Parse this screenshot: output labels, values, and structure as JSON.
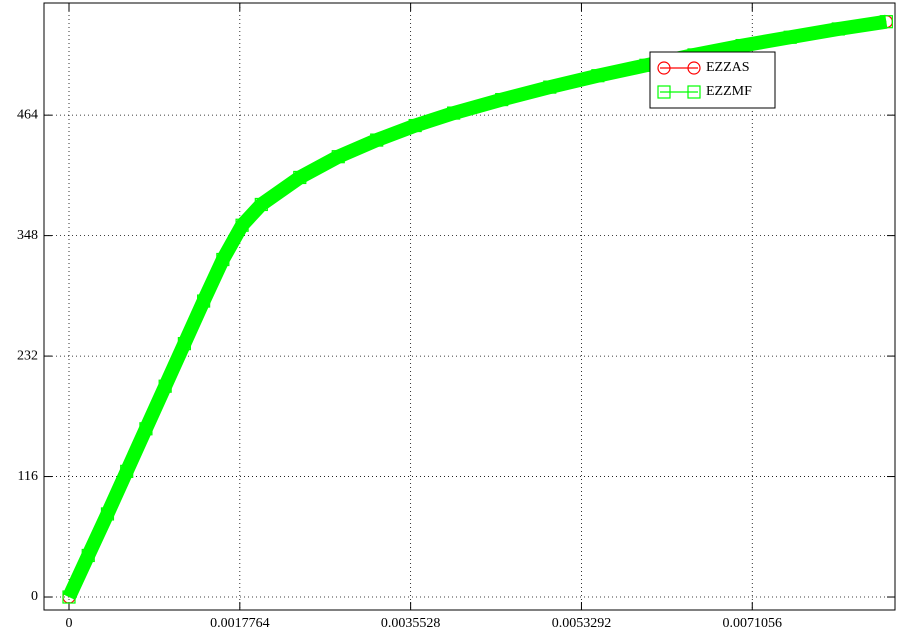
{
  "chart_data": {
    "type": "line",
    "x": [
      0,
      0.0002,
      0.0004,
      0.0006,
      0.0008,
      0.001,
      0.0012,
      0.0014,
      0.0016,
      0.0018,
      0.002,
      0.0024,
      0.0028,
      0.0032,
      0.0036,
      0.004,
      0.0045,
      0.005,
      0.0055,
      0.006,
      0.0065,
      0.007,
      0.0075,
      0.008,
      0.0085
    ],
    "series": [
      {
        "name": "EZZAS",
        "color": "#ff0000",
        "marker": "circle",
        "values": [
          0,
          40,
          80,
          121,
          162,
          203,
          244,
          285,
          325,
          358,
          378,
          404,
          424,
          440,
          454,
          466,
          479,
          491,
          502,
          512,
          522,
          531,
          539,
          547,
          554
        ]
      },
      {
        "name": "EZZMF",
        "color": "#00ff00",
        "marker": "square",
        "values": [
          0,
          40,
          80,
          121,
          162,
          203,
          244,
          285,
          325,
          358,
          378,
          404,
          424,
          440,
          454,
          466,
          479,
          491,
          502,
          512,
          522,
          531,
          539,
          547,
          554
        ]
      }
    ],
    "xlim": [
      -0.00026,
      0.00859
    ],
    "ylim": [
      -12.5,
      572
    ],
    "xticks": [
      0,
      0.0017764,
      0.0035528,
      0.0053292,
      0.0071056
    ],
    "yticks": [
      0,
      116,
      232,
      348,
      464
    ],
    "grid": true,
    "legend": "upper right"
  }
}
